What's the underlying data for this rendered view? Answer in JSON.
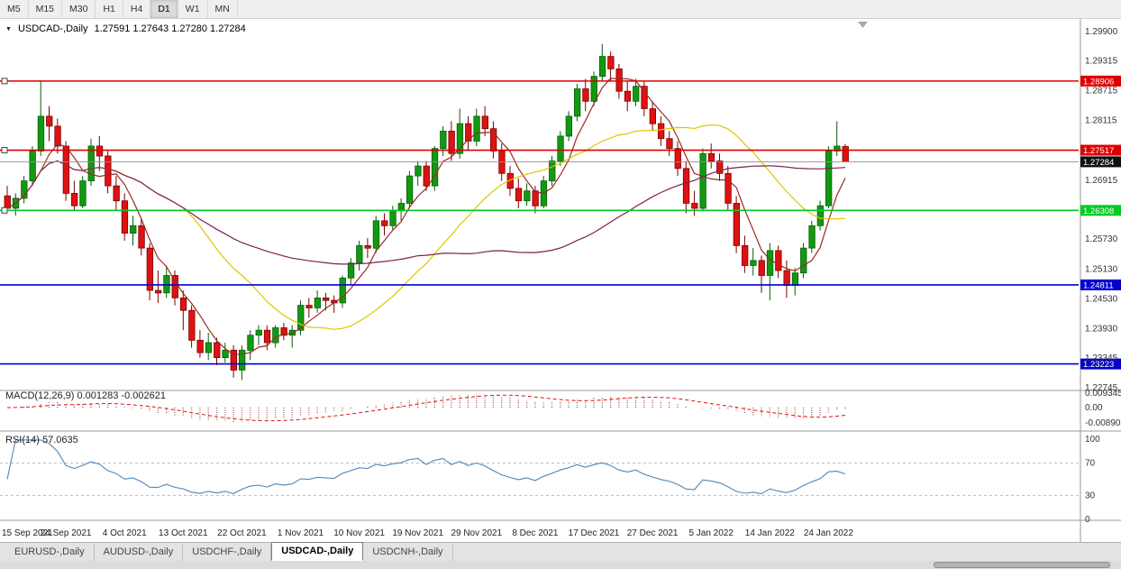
{
  "toolbar": {
    "buttons": [
      "M5",
      "M15",
      "M30",
      "H1",
      "H4",
      "D1",
      "W1",
      "MN"
    ],
    "active": "D1"
  },
  "chart_data": {
    "type": "candlestick",
    "title_dropdown": "▼",
    "symbol": "USDCAD-,Daily",
    "ohlc_display": "1.27591 1.27643 1.27280 1.27284",
    "price_ticks": [
      "1.29900",
      "1.29315",
      "1.28715",
      "1.28115",
      "1.26915",
      "1.25730",
      "1.25130",
      "1.24530",
      "1.23930",
      "1.23345",
      "1.22745"
    ],
    "hlines": [
      {
        "value": "1.28906",
        "price": 1.28906,
        "color": "#dd0000",
        "type": "resistance",
        "left_marker": true
      },
      {
        "value": "1.27517",
        "price": 1.27517,
        "color": "#dd0000",
        "type": "resistance",
        "left_marker": true
      },
      {
        "value": "1.26308",
        "price": 1.26308,
        "color": "#00cc22",
        "type": "support",
        "left_marker": true
      },
      {
        "value": "1.24811",
        "price": 1.24811,
        "color": "#0000cd",
        "type": "support",
        "left_marker": false
      },
      {
        "value": "1.23223",
        "price": 1.23223,
        "color": "#0000cd",
        "type": "support",
        "left_marker": false
      }
    ],
    "current_price": {
      "value": "1.27284",
      "price": 1.27284,
      "line_color": "#909090",
      "label_bg": "#101010"
    },
    "colors": {
      "up": "#119a11",
      "up_stroke": "#0a5c0a",
      "down": "#e01111",
      "down_stroke": "#7a0000"
    },
    "moving_averages": [
      {
        "period": 5,
        "color": "#9c2b21"
      },
      {
        "period": 20,
        "color": "#e0c400"
      },
      {
        "period": 50,
        "color": "#7c2150"
      }
    ],
    "x_labels": [
      {
        "i": 0,
        "t": "15 Sep 2021"
      },
      {
        "i": 7,
        "t": "24 Sep 2021"
      },
      {
        "i": 14,
        "t": "4 Oct 2021"
      },
      {
        "i": 21,
        "t": "13 Oct 2021"
      },
      {
        "i": 28,
        "t": "22 Oct 2021"
      },
      {
        "i": 35,
        "t": "1 Nov 2021"
      },
      {
        "i": 42,
        "t": "10 Nov 2021"
      },
      {
        "i": 49,
        "t": "19 Nov 2021"
      },
      {
        "i": 56,
        "t": "29 Nov 2021"
      },
      {
        "i": 63,
        "t": "8 Dec 2021"
      },
      {
        "i": 70,
        "t": "17 Dec 2021"
      },
      {
        "i": 77,
        "t": "27 Dec 2021"
      },
      {
        "i": 84,
        "t": "5 Jan 2022"
      },
      {
        "i": 91,
        "t": "14 Jan 2022"
      },
      {
        "i": 98,
        "t": "24 Jan 2022"
      }
    ],
    "candles": [
      [
        1.266,
        1.268,
        1.2625,
        1.2635
      ],
      [
        1.2635,
        1.2665,
        1.262,
        1.2655
      ],
      [
        1.2655,
        1.27,
        1.2645,
        1.269
      ],
      [
        1.269,
        1.276,
        1.268,
        1.275
      ],
      [
        1.275,
        1.289,
        1.274,
        1.282
      ],
      [
        1.282,
        1.284,
        1.277,
        1.28
      ],
      [
        1.28,
        1.2815,
        1.2745,
        1.276
      ],
      [
        1.276,
        1.277,
        1.265,
        1.2665
      ],
      [
        1.2665,
        1.269,
        1.263,
        1.264
      ],
      [
        1.264,
        1.27,
        1.2635,
        1.269
      ],
      [
        1.269,
        1.2775,
        1.268,
        1.276
      ],
      [
        1.276,
        1.278,
        1.271,
        1.274
      ],
      [
        1.274,
        1.275,
        1.2665,
        1.268
      ],
      [
        1.268,
        1.27,
        1.263,
        1.265
      ],
      [
        1.265,
        1.2665,
        1.257,
        1.2585
      ],
      [
        1.2585,
        1.262,
        1.256,
        1.26
      ],
      [
        1.26,
        1.2615,
        1.254,
        1.2555
      ],
      [
        1.2555,
        1.2565,
        1.245,
        1.247
      ],
      [
        1.247,
        1.251,
        1.2445,
        1.2465
      ],
      [
        1.2465,
        1.252,
        1.2455,
        1.25
      ],
      [
        1.25,
        1.251,
        1.244,
        1.2455
      ],
      [
        1.2455,
        1.247,
        1.239,
        1.243
      ],
      [
        1.243,
        1.244,
        1.2355,
        1.237
      ],
      [
        1.237,
        1.239,
        1.2335,
        1.2345
      ],
      [
        1.2345,
        1.2385,
        1.233,
        1.2365
      ],
      [
        1.2365,
        1.2375,
        1.232,
        1.2335
      ],
      [
        1.2335,
        1.2365,
        1.2325,
        1.235
      ],
      [
        1.235,
        1.236,
        1.2295,
        1.231
      ],
      [
        1.231,
        1.236,
        1.229,
        1.235
      ],
      [
        1.235,
        1.239,
        1.233,
        1.238
      ],
      [
        1.238,
        1.24,
        1.236,
        1.239
      ],
      [
        1.239,
        1.24,
        1.235,
        1.2365
      ],
      [
        1.2365,
        1.24,
        1.2355,
        1.2395
      ],
      [
        1.2395,
        1.2405,
        1.237,
        1.238
      ],
      [
        1.238,
        1.24,
        1.2355,
        1.239
      ],
      [
        1.239,
        1.245,
        1.238,
        1.244
      ],
      [
        1.244,
        1.2455,
        1.2415,
        1.2435
      ],
      [
        1.2435,
        1.247,
        1.2425,
        1.2455
      ],
      [
        1.2455,
        1.2465,
        1.243,
        1.245
      ],
      [
        1.245,
        1.246,
        1.2425,
        1.2445
      ],
      [
        1.2445,
        1.25,
        1.2435,
        1.2495
      ],
      [
        1.2495,
        1.2535,
        1.248,
        1.2525
      ],
      [
        1.2525,
        1.257,
        1.251,
        1.256
      ],
      [
        1.256,
        1.2575,
        1.2535,
        1.2555
      ],
      [
        1.2555,
        1.262,
        1.2545,
        1.261
      ],
      [
        1.261,
        1.2625,
        1.258,
        1.26
      ],
      [
        1.26,
        1.264,
        1.259,
        1.263
      ],
      [
        1.263,
        1.2655,
        1.261,
        1.2645
      ],
      [
        1.2645,
        1.271,
        1.2635,
        1.27
      ],
      [
        1.27,
        1.273,
        1.268,
        1.272
      ],
      [
        1.272,
        1.273,
        1.267,
        1.268
      ],
      [
        1.268,
        1.276,
        1.267,
        1.2755
      ],
      [
        1.2755,
        1.28,
        1.274,
        1.279
      ],
      [
        1.279,
        1.281,
        1.273,
        1.2745
      ],
      [
        1.2745,
        1.2835,
        1.2735,
        1.2805
      ],
      [
        1.2805,
        1.282,
        1.275,
        1.277
      ],
      [
        1.277,
        1.2835,
        1.276,
        1.282
      ],
      [
        1.282,
        1.284,
        1.278,
        1.2795
      ],
      [
        1.2795,
        1.281,
        1.2735,
        1.275
      ],
      [
        1.275,
        1.2765,
        1.269,
        1.2705
      ],
      [
        1.2705,
        1.272,
        1.266,
        1.2675
      ],
      [
        1.2675,
        1.2695,
        1.2635,
        1.265
      ],
      [
        1.265,
        1.2685,
        1.264,
        1.267
      ],
      [
        1.267,
        1.268,
        1.2625,
        1.264
      ],
      [
        1.264,
        1.27,
        1.2635,
        1.269
      ],
      [
        1.269,
        1.274,
        1.268,
        1.273
      ],
      [
        1.273,
        1.279,
        1.272,
        1.278
      ],
      [
        1.278,
        1.283,
        1.277,
        1.282
      ],
      [
        1.282,
        1.2885,
        1.281,
        1.2875
      ],
      [
        1.2875,
        1.2895,
        1.283,
        1.285
      ],
      [
        1.285,
        1.291,
        1.284,
        1.29
      ],
      [
        1.29,
        1.2965,
        1.289,
        1.294
      ],
      [
        1.294,
        1.295,
        1.289,
        1.2915
      ],
      [
        1.2915,
        1.2925,
        1.2855,
        1.287
      ],
      [
        1.287,
        1.289,
        1.283,
        1.285
      ],
      [
        1.285,
        1.2895,
        1.284,
        1.288
      ],
      [
        1.288,
        1.289,
        1.282,
        1.2835
      ],
      [
        1.2835,
        1.285,
        1.279,
        1.2805
      ],
      [
        1.2805,
        1.282,
        1.276,
        1.2775
      ],
      [
        1.2775,
        1.279,
        1.274,
        1.2755
      ],
      [
        1.2755,
        1.277,
        1.27,
        1.2715
      ],
      [
        1.2715,
        1.273,
        1.2625,
        1.2645
      ],
      [
        1.2645,
        1.267,
        1.262,
        1.2635
      ],
      [
        1.2635,
        1.2755,
        1.263,
        1.2745
      ],
      [
        1.2745,
        1.2765,
        1.2715,
        1.273
      ],
      [
        1.273,
        1.2745,
        1.269,
        1.2705
      ],
      [
        1.2705,
        1.272,
        1.263,
        1.2645
      ],
      [
        1.2645,
        1.266,
        1.2545,
        1.256
      ],
      [
        1.256,
        1.258,
        1.2505,
        1.252
      ],
      [
        1.252,
        1.2555,
        1.25,
        1.253
      ],
      [
        1.253,
        1.254,
        1.2465,
        1.25
      ],
      [
        1.25,
        1.2565,
        1.245,
        1.255
      ],
      [
        1.255,
        1.256,
        1.2495,
        1.251
      ],
      [
        1.251,
        1.253,
        1.2455,
        1.248
      ],
      [
        1.248,
        1.2515,
        1.246,
        1.2505
      ],
      [
        1.2505,
        1.2565,
        1.2495,
        1.2555
      ],
      [
        1.2555,
        1.261,
        1.2545,
        1.26
      ],
      [
        1.26,
        1.265,
        1.259,
        1.264
      ],
      [
        1.264,
        1.276,
        1.2635,
        1.275
      ],
      [
        1.275,
        1.281,
        1.274,
        1.276
      ],
      [
        1.27591,
        1.27643,
        1.2728,
        1.27284
      ]
    ],
    "indicators": {
      "macd": {
        "name": "MACD(12,26,9)",
        "main_value": "0.001283",
        "signal_value": "-0.002621",
        "fast": 12,
        "slow": 26,
        "signal": 9,
        "axis_labels": [
          "0.009345",
          "0.00",
          "-0.008902"
        ],
        "hist_color": "#a05a5a",
        "signal_color": "#e01010"
      },
      "rsi": {
        "name": "RSI(14)",
        "value": "57.0635",
        "period": 14,
        "axis_labels": [
          "100",
          "70",
          "30",
          "0"
        ],
        "levels": [
          70,
          30
        ],
        "line_color": "#4f86b5",
        "level_color": "#b9a9c9"
      }
    }
  },
  "tabs": {
    "items": [
      "EURUSD-,Daily",
      "AUDUSD-,Daily",
      "USDCHF-,Daily",
      "USDCAD-,Daily",
      "USDCNH-,Daily"
    ],
    "active_index": 3
  }
}
